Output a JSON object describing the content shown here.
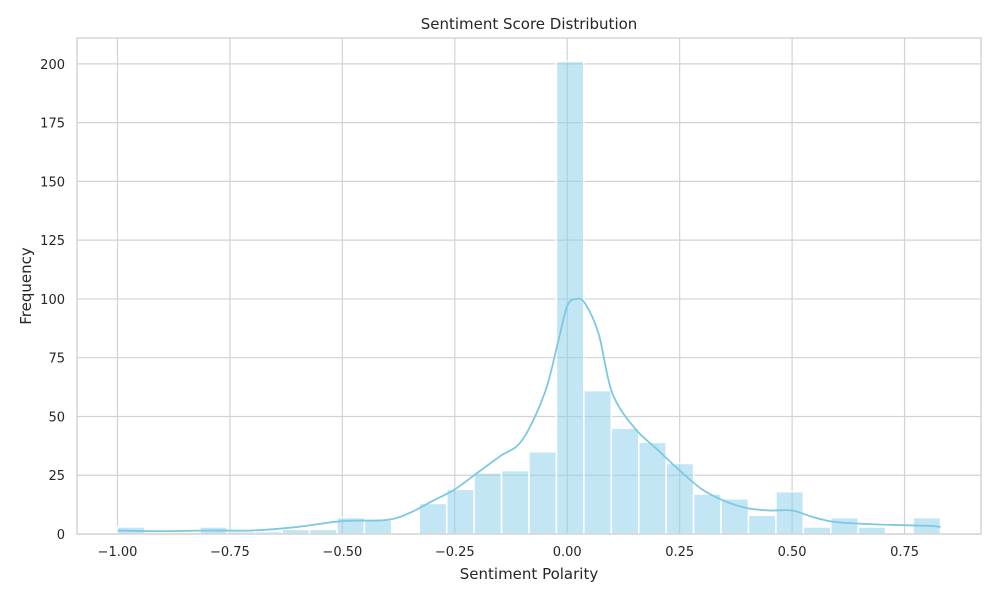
{
  "chart_data": {
    "type": "bar",
    "title": "Sentiment Score Distribution",
    "xlabel": "Sentiment Polarity",
    "ylabel": "Frequency",
    "xlim": [
      -1.09,
      0.92
    ],
    "ylim": [
      0,
      211
    ],
    "x_ticks": [
      -1.0,
      -0.75,
      -0.5,
      -0.25,
      0.0,
      0.25,
      0.5,
      0.75
    ],
    "x_tick_labels": [
      "−1.00",
      "−0.75",
      "−0.50",
      "−0.25",
      "0.00",
      "0.25",
      "0.50",
      "0.75"
    ],
    "y_ticks": [
      0,
      25,
      50,
      75,
      100,
      125,
      150,
      175,
      200
    ],
    "y_tick_labels": [
      "0",
      "25",
      "50",
      "75",
      "100",
      "125",
      "150",
      "175",
      "200"
    ],
    "grid": true,
    "bar_color": "#87ceeb",
    "kde_color": "#7ec8e3",
    "bins": [
      {
        "x0": -1.0,
        "x1": -0.939,
        "count": 3
      },
      {
        "x0": -0.939,
        "x1": -0.878,
        "count": 0
      },
      {
        "x0": -0.878,
        "x1": -0.817,
        "count": 0
      },
      {
        "x0": -0.817,
        "x1": -0.756,
        "count": 3
      },
      {
        "x0": -0.756,
        "x1": -0.695,
        "count": 1
      },
      {
        "x0": -0.695,
        "x1": -0.634,
        "count": 1
      },
      {
        "x0": -0.634,
        "x1": -0.573,
        "count": 2
      },
      {
        "x0": -0.573,
        "x1": -0.512,
        "count": 2
      },
      {
        "x0": -0.512,
        "x1": -0.451,
        "count": 7
      },
      {
        "x0": -0.451,
        "x1": -0.39,
        "count": 6
      },
      {
        "x0": -0.39,
        "x1": -0.329,
        "count": 0
      },
      {
        "x0": -0.329,
        "x1": -0.268,
        "count": 13
      },
      {
        "x0": -0.268,
        "x1": -0.207,
        "count": 19
      },
      {
        "x0": -0.207,
        "x1": -0.146,
        "count": 26
      },
      {
        "x0": -0.146,
        "x1": -0.085,
        "count": 27
      },
      {
        "x0": -0.085,
        "x1": -0.024,
        "count": 35
      },
      {
        "x0": -0.024,
        "x1": 0.037,
        "count": 201
      },
      {
        "x0": 0.037,
        "x1": 0.098,
        "count": 61
      },
      {
        "x0": 0.098,
        "x1": 0.159,
        "count": 45
      },
      {
        "x0": 0.159,
        "x1": 0.22,
        "count": 39
      },
      {
        "x0": 0.22,
        "x1": 0.281,
        "count": 30
      },
      {
        "x0": 0.281,
        "x1": 0.342,
        "count": 17
      },
      {
        "x0": 0.342,
        "x1": 0.403,
        "count": 15
      },
      {
        "x0": 0.403,
        "x1": 0.464,
        "count": 8
      },
      {
        "x0": 0.464,
        "x1": 0.525,
        "count": 18
      },
      {
        "x0": 0.525,
        "x1": 0.586,
        "count": 3
      },
      {
        "x0": 0.586,
        "x1": 0.647,
        "count": 7
      },
      {
        "x0": 0.647,
        "x1": 0.708,
        "count": 3
      },
      {
        "x0": 0.708,
        "x1": 0.769,
        "count": 0
      },
      {
        "x0": 0.769,
        "x1": 0.83,
        "count": 7
      }
    ],
    "kde_curve": {
      "x": [
        -1.0,
        -0.9,
        -0.8,
        -0.7,
        -0.6,
        -0.5,
        -0.4,
        -0.35,
        -0.3,
        -0.25,
        -0.2,
        -0.15,
        -0.1,
        -0.05,
        -0.02,
        0.0,
        0.02,
        0.04,
        0.07,
        0.1,
        0.15,
        0.2,
        0.25,
        0.3,
        0.35,
        0.4,
        0.45,
        0.5,
        0.55,
        0.6,
        0.7,
        0.8,
        0.83
      ],
      "y": [
        1.5,
        1.2,
        1.5,
        1.5,
        3,
        5.5,
        6,
        9,
        14,
        19,
        26,
        33,
        40,
        60,
        82,
        97,
        100,
        98,
        85,
        60,
        45,
        36,
        27,
        19,
        14,
        11,
        10,
        10,
        7,
        5,
        4,
        3.5,
        3
      ]
    }
  }
}
